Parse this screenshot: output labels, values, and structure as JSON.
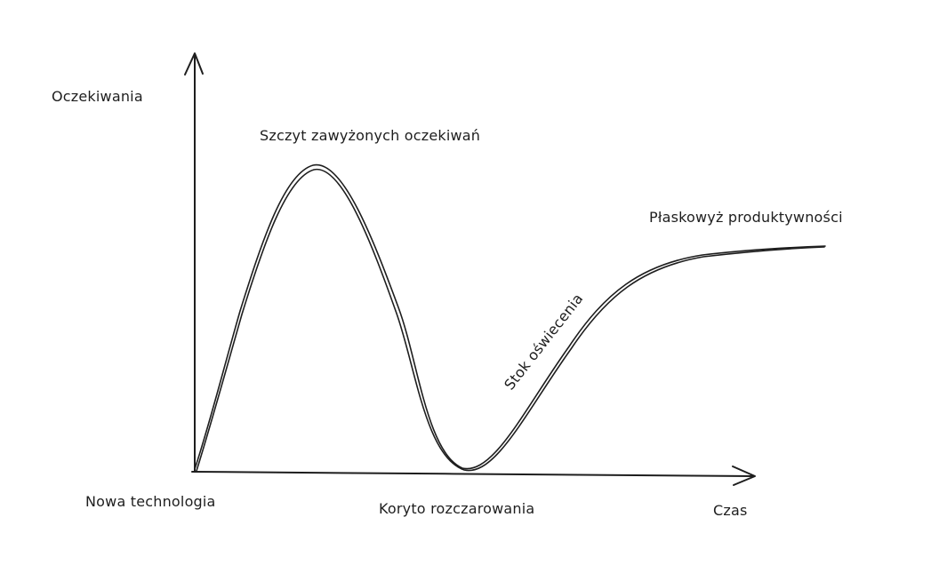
{
  "labels": {
    "y_axis": "Oczekiwania",
    "x_axis": "Czas",
    "peak": "Szczyt zawyżonych oczekiwań",
    "plateau": "Płaskowyż produktywności",
    "slope": "Stok oświecenia",
    "trough": "Koryto rozczarowania",
    "trigger": "Nowa technologia"
  },
  "colors": {
    "ink": "#1e1e1e",
    "background": "#ffffff"
  }
}
